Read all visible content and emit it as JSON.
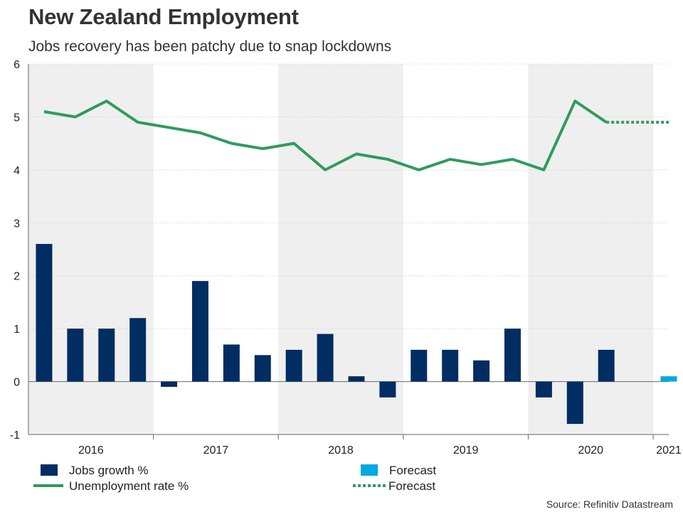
{
  "title": "New Zealand Employment",
  "subtitle": "Jobs recovery has been patchy due to snap lockdowns",
  "source": "Source: Refinitiv Datastream",
  "chart_data": {
    "type": "bar",
    "ylim": [
      -1,
      6
    ],
    "yticks": [
      "-1",
      "0",
      "1",
      "2",
      "3",
      "4",
      "5",
      "6"
    ],
    "year_labels": [
      "2016",
      "2017",
      "2018",
      "2019",
      "2020",
      "2021"
    ],
    "year_quarters": [
      [
        0,
        3
      ],
      [
        4,
        7
      ],
      [
        8,
        11
      ],
      [
        12,
        15
      ],
      [
        16,
        19
      ],
      [
        20,
        20
      ]
    ],
    "shaded_years": [
      0,
      2,
      4
    ],
    "quarters": [
      "2016 Q1",
      "2016 Q2",
      "2016 Q3",
      "2016 Q4",
      "2017 Q1",
      "2017 Q2",
      "2017 Q3",
      "2017 Q4",
      "2018 Q1",
      "2018 Q2",
      "2018 Q3",
      "2018 Q4",
      "2019 Q1",
      "2019 Q2",
      "2019 Q3",
      "2019 Q4",
      "2020 Q1",
      "2020 Q2",
      "2020 Q3",
      "2020 Q4",
      "2021 Q1"
    ],
    "series": [
      {
        "name": "Jobs growth %",
        "kind": "bar",
        "values": [
          2.6,
          1.0,
          1.0,
          1.2,
          -0.1,
          1.9,
          0.7,
          0.5,
          0.6,
          0.9,
          0.1,
          -0.3,
          0.6,
          0.6,
          0.4,
          1.0,
          -0.3,
          -0.8,
          0.6,
          null,
          null
        ]
      },
      {
        "name": "Forecast",
        "kind": "bar",
        "values": [
          null,
          null,
          null,
          null,
          null,
          null,
          null,
          null,
          null,
          null,
          null,
          null,
          null,
          null,
          null,
          null,
          null,
          null,
          null,
          null,
          0.1
        ]
      },
      {
        "name": "Unemployment rate %",
        "kind": "line",
        "values": [
          5.1,
          5.0,
          5.3,
          4.9,
          4.8,
          4.7,
          4.5,
          4.4,
          4.5,
          4.0,
          4.3,
          4.2,
          4.0,
          4.2,
          4.1,
          4.2,
          4.0,
          5.3,
          4.9,
          null,
          null
        ]
      },
      {
        "name": "Forecast",
        "kind": "dotted-line",
        "values": [
          null,
          null,
          null,
          null,
          null,
          null,
          null,
          null,
          null,
          null,
          null,
          null,
          null,
          null,
          null,
          null,
          null,
          null,
          4.9,
          4.9,
          4.9
        ]
      }
    ],
    "colors": {
      "bar": "#002d62",
      "bar_forecast": "#00a9e0",
      "line": "#2e9b5e",
      "shade": "#efefef",
      "grid": "#cccccc",
      "axis": "#666666"
    },
    "legend": [
      {
        "label": "Jobs growth %",
        "kind": "bar-swatch",
        "color": "#002d62"
      },
      {
        "label": "Forecast",
        "kind": "bar-swatch",
        "color": "#00a9e0"
      },
      {
        "label": "Unemployment rate %",
        "kind": "line-swatch",
        "color": "#2e9b5e"
      },
      {
        "label": "Forecast",
        "kind": "dotted-swatch",
        "color": "#2e9b5e"
      }
    ]
  }
}
